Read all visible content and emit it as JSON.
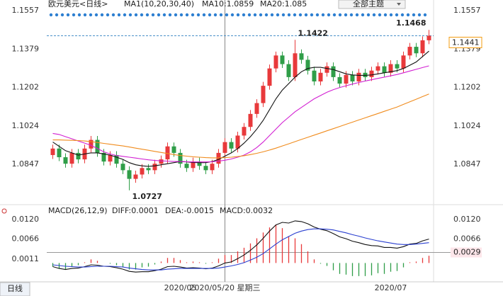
{
  "chart_data": [
    {
      "type": "candlestick",
      "title": "欧元美元<日线>",
      "legend": [
        {
          "text": "MA1(10,20,30,40)",
          "color": "#222"
        },
        {
          "text": "MA10:1.0859",
          "color": "#222"
        },
        {
          "text": "MA20:1.085",
          "color": "#2a3fd0"
        }
      ],
      "categories": [
        null,
        null,
        null,
        null,
        null,
        null,
        null,
        null,
        null,
        null,
        null,
        null,
        null,
        null,
        null,
        null,
        null,
        null,
        null,
        null,
        "2020/05",
        null,
        null,
        null,
        null,
        null,
        null,
        "2020/05/20 星期三",
        null,
        null,
        null,
        null,
        null,
        null,
        null,
        null,
        null,
        null,
        null,
        null,
        null,
        null,
        null,
        null,
        null,
        null,
        null,
        null,
        null,
        null,
        null,
        null,
        null,
        "2020/07",
        null,
        null,
        null,
        null,
        null,
        null
      ],
      "crosshair": 27,
      "open": [
        1.089,
        1.092,
        1.088,
        1.085,
        1.09,
        1.087,
        1.092,
        1.096,
        1.09,
        1.086,
        1.089,
        1.085,
        1.082,
        1.078,
        1.08,
        1.083,
        1.082,
        1.085,
        1.087,
        1.093,
        1.09,
        1.085,
        1.083,
        1.086,
        1.084,
        1.082,
        1.085,
        1.09,
        1.095,
        1.092,
        1.098,
        1.102,
        1.108,
        1.113,
        1.121,
        1.129,
        1.135,
        1.131,
        1.125,
        1.136,
        1.133,
        1.128,
        1.123,
        1.127,
        1.13,
        1.125,
        1.122,
        1.126,
        1.123,
        1.127,
        1.125,
        1.128,
        1.13,
        1.127,
        1.131,
        1.129,
        1.135,
        1.139,
        1.136,
        1.142
      ],
      "high": [
        1.0938,
        1.0938,
        1.0898,
        1.0918,
        1.0918,
        1.0938,
        1.0978,
        1.0978,
        1.0918,
        1.0908,
        1.0908,
        1.0868,
        1.0838,
        1.0818,
        1.0848,
        1.0848,
        1.0868,
        1.0888,
        1.0948,
        1.0948,
        1.0918,
        1.0868,
        1.0878,
        1.0878,
        1.0858,
        1.0868,
        1.0918,
        1.0968,
        1.0968,
        1.0998,
        1.1038,
        1.1098,
        1.1148,
        1.1228,
        1.1308,
        1.1368,
        1.1368,
        1.1328,
        1.1422,
        1.1378,
        1.1348,
        1.1298,
        1.1288,
        1.1318,
        1.1318,
        1.1268,
        1.1278,
        1.1278,
        1.1288,
        1.1288,
        1.1298,
        1.1318,
        1.1318,
        1.1328,
        1.1328,
        1.1368,
        1.1408,
        1.1408,
        1.1438,
        1.1468
      ],
      "low": [
        1.0872,
        1.0862,
        1.0832,
        1.0832,
        1.0852,
        1.0852,
        1.0902,
        1.0882,
        1.0842,
        1.0842,
        1.0832,
        1.0802,
        1.0727,
        1.0762,
        1.0782,
        1.0802,
        1.0802,
        1.0832,
        1.0852,
        1.0882,
        1.0832,
        1.0812,
        1.0812,
        1.0822,
        1.0802,
        1.0802,
        1.0832,
        1.0882,
        1.0902,
        1.0902,
        1.0962,
        1.1002,
        1.1062,
        1.1112,
        1.1192,
        1.1272,
        1.1292,
        1.1232,
        1.1232,
        1.1312,
        1.1262,
        1.1212,
        1.1212,
        1.1252,
        1.1232,
        1.1202,
        1.1202,
        1.1212,
        1.1212,
        1.1232,
        1.1232,
        1.1262,
        1.1252,
        1.1252,
        1.1272,
        1.1272,
        1.1332,
        1.1342,
        1.1342,
        1.1402
      ],
      "close": [
        1.092,
        1.088,
        1.085,
        1.09,
        1.087,
        1.092,
        1.096,
        1.09,
        1.086,
        1.089,
        1.085,
        1.082,
        1.078,
        1.08,
        1.083,
        1.082,
        1.085,
        1.087,
        1.093,
        1.09,
        1.085,
        1.083,
        1.086,
        1.084,
        1.082,
        1.085,
        1.09,
        1.095,
        1.092,
        1.098,
        1.102,
        1.108,
        1.113,
        1.121,
        1.129,
        1.135,
        1.131,
        1.125,
        1.136,
        1.133,
        1.128,
        1.123,
        1.127,
        1.13,
        1.125,
        1.122,
        1.126,
        1.123,
        1.127,
        1.125,
        1.128,
        1.13,
        1.127,
        1.131,
        1.129,
        1.135,
        1.139,
        1.136,
        1.142,
        1.1441
      ],
      "up_color": "#e8393b",
      "down_color": "#2f9e48",
      "lines": [
        {
          "color": "#111111",
          "values": [
            1.095,
            1.093,
            1.091,
            1.09,
            1.089,
            1.0895,
            1.09,
            1.09,
            1.0895,
            1.089,
            1.088,
            1.087,
            1.0855,
            1.0845,
            1.084,
            1.0838,
            1.084,
            1.0845,
            1.085,
            1.0855,
            1.086,
            1.0858,
            1.0856,
            1.0855,
            1.0855,
            1.086,
            1.087,
            1.0885,
            1.09,
            1.092,
            1.0945,
            1.0975,
            1.101,
            1.105,
            1.11,
            1.115,
            1.119,
            1.122,
            1.125,
            1.1275,
            1.129,
            1.1295,
            1.1295,
            1.129,
            1.1285,
            1.1275,
            1.1265,
            1.126,
            1.1258,
            1.1258,
            1.126,
            1.1265,
            1.127,
            1.1275,
            1.128,
            1.129,
            1.1305,
            1.132,
            1.1345,
            1.137
          ]
        },
        {
          "color": "#d21fd2",
          "values": [
            1.099,
            1.0985,
            1.0975,
            1.0965,
            1.0955,
            1.0945,
            1.0935,
            1.092,
            1.0905,
            1.0895,
            1.0888,
            1.0884,
            1.088,
            1.0876,
            1.0872,
            1.0868,
            1.0865,
            1.0863,
            1.0862,
            1.086,
            1.086,
            1.0859,
            1.0858,
            1.0858,
            1.0858,
            1.0859,
            1.0862,
            1.0866,
            1.0872,
            1.088,
            1.089,
            1.0905,
            1.0925,
            1.095,
            1.098,
            1.101,
            1.104,
            1.1065,
            1.109,
            1.111,
            1.113,
            1.115,
            1.1165,
            1.118,
            1.1192,
            1.1202,
            1.121,
            1.1218,
            1.1225,
            1.1232,
            1.1238,
            1.1244,
            1.125,
            1.1256,
            1.1262,
            1.127,
            1.1278,
            1.1286,
            1.1294,
            1.1302
          ]
        },
        {
          "color": "#f08c1e",
          "values": [
            1.096,
            1.096,
            1.0959,
            1.0958,
            1.0957,
            1.0955,
            1.0952,
            1.0948,
            1.0944,
            1.094,
            1.0936,
            1.0932,
            1.0927,
            1.0922,
            1.0917,
            1.0912,
            1.0907,
            1.0902,
            1.0897,
            1.0892,
            1.0888,
            1.0885,
            1.0882,
            1.088,
            1.0878,
            1.0877,
            1.0877,
            1.0878,
            1.088,
            1.0883,
            1.0887,
            1.0892,
            1.0898,
            1.0905,
            1.0913,
            1.0922,
            1.0932,
            1.0942,
            1.0952,
            1.0962,
            1.0972,
            1.0982,
            1.0992,
            1.1002,
            1.1012,
            1.1022,
            1.1032,
            1.1042,
            1.1052,
            1.1062,
            1.1072,
            1.1082,
            1.1092,
            1.1102,
            1.1112,
            1.1124,
            1.1136,
            1.1148,
            1.116,
            1.1172
          ]
        }
      ],
      "ylim": [
        1.0674,
        1.158
      ],
      "yticks": [
        1.1557,
        1.1379,
        1.1202,
        1.1024,
        1.0847
      ],
      "annotations": [
        1.1422,
        1.1468,
        1.0727
      ],
      "tag_color": "#f39c12"
    },
    {
      "type": "macd",
      "legend": [
        {
          "text": "MACD(26,12,9)",
          "color": "#222"
        },
        {
          "text": "DIFF:0.0001",
          "color": "#222"
        },
        {
          "text": "DEA:-0.0015",
          "color": "#2a3fd0"
        },
        {
          "text": "MACD:0.0032",
          "color": "#d21fd2"
        }
      ],
      "lines": [
        {
          "color": "#111111",
          "values": [
            -0.001,
            -0.0015,
            -0.0018,
            -0.0015,
            -0.0014,
            -0.001,
            -0.0005,
            -0.0006,
            -0.0009,
            -0.001,
            -0.0013,
            -0.0017,
            -0.0023,
            -0.0025,
            -0.0024,
            -0.0024,
            -0.0021,
            -0.0017,
            -0.001,
            -0.0009,
            -0.0011,
            -0.0014,
            -0.0013,
            -0.0014,
            -0.0016,
            -0.0014,
            -0.0008,
            0.0,
            0.0003,
            0.0012,
            0.0022,
            0.0035,
            0.005,
            0.0068,
            0.0088,
            0.0105,
            0.0112,
            0.011,
            0.0116,
            0.0114,
            0.0108,
            0.0099,
            0.0093,
            0.0089,
            0.0081,
            0.0072,
            0.0067,
            0.006,
            0.0056,
            0.0051,
            0.0048,
            0.0047,
            0.0043,
            0.0043,
            0.0041,
            0.0045,
            0.0052,
            0.0054,
            0.0061,
            0.0066
          ]
        },
        {
          "color": "#2a3fd0",
          "values": [
            -0.0005,
            -0.0007,
            -0.0009,
            -0.001,
            -0.0011,
            -0.0011,
            -0.001,
            -0.0009,
            -0.0009,
            -0.0009,
            -0.001,
            -0.0011,
            -0.0014,
            -0.0016,
            -0.0018,
            -0.0019,
            -0.0019,
            -0.0019,
            -0.0017,
            -0.0016,
            -0.0015,
            -0.0015,
            -0.0015,
            -0.0015,
            -0.0015,
            -0.0015,
            -0.0014,
            -0.0011,
            -0.0008,
            -0.0004,
            0.0001,
            0.0008,
            0.0016,
            0.0026,
            0.0039,
            0.0052,
            0.0064,
            0.0073,
            0.0082,
            0.0088,
            0.0092,
            0.0094,
            0.0094,
            0.0093,
            0.0091,
            0.0087,
            0.0083,
            0.0078,
            0.0074,
            0.0069,
            0.0065,
            0.0061,
            0.0058,
            0.0055,
            0.0052,
            0.0051,
            0.0051,
            0.0052,
            0.0054,
            0.0056
          ]
        }
      ],
      "bars": {
        "up_color": "#e8393b",
        "down_color": "#2f9e48",
        "values": [
          -0.001,
          -0.0016,
          -0.0018,
          -0.001,
          -0.0006,
          0.0002,
          0.001,
          0.0006,
          0.0,
          -0.0002,
          -0.0006,
          -0.0012,
          -0.0018,
          -0.0018,
          -0.0012,
          -0.001,
          -0.0004,
          0.0004,
          0.0014,
          0.0014,
          0.0008,
          0.0002,
          0.0004,
          0.0002,
          -0.0002,
          0.0002,
          0.0012,
          0.0022,
          0.0022,
          0.0032,
          0.0042,
          0.0054,
          0.0068,
          0.0084,
          0.0098,
          0.0106,
          0.0096,
          0.0074,
          0.0068,
          0.0052,
          0.0032,
          0.001,
          -0.0002,
          -0.0008,
          -0.002,
          -0.003,
          -0.0032,
          -0.0036,
          -0.0036,
          -0.0036,
          -0.0034,
          -0.0028,
          -0.003,
          -0.0024,
          -0.0022,
          -0.0012,
          0.0002,
          0.0004,
          0.0014,
          0.002
        ]
      },
      "ylim": [
        -0.0046,
        0.0149
      ],
      "yticks": [
        {
          "value": 0.012,
          "label": "0.0120"
        },
        0.0066,
        0.0011
      ],
      "marker": {
        "value": 0.0029,
        "label": "0.0029"
      }
    }
  ],
  "toolbar": {
    "theme": "全部主题",
    "tab": "日线"
  }
}
